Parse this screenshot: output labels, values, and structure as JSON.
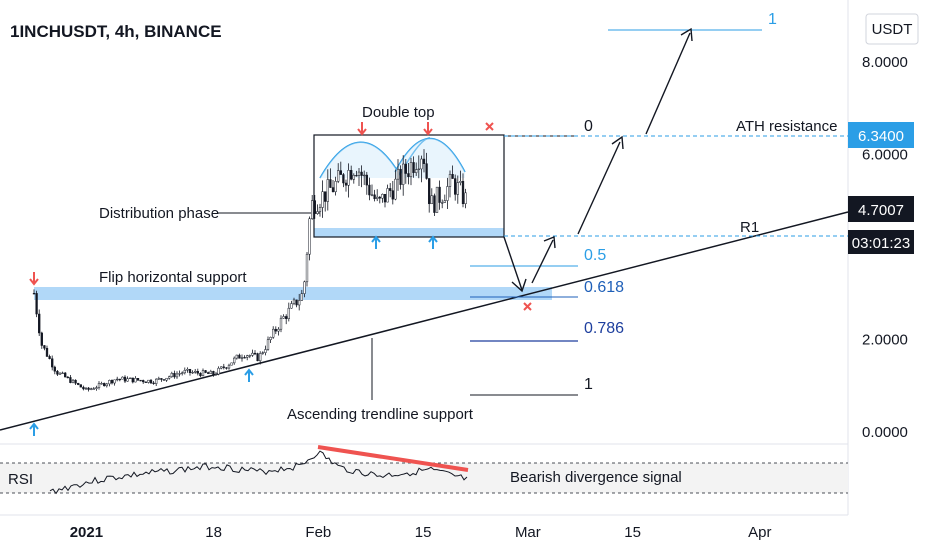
{
  "header": {
    "symbol": "1INCHUSDT, 4h, BINANCE",
    "currency_button": "USDT"
  },
  "chart_data": {
    "type": "candlestick",
    "title": "1INCHUSDT, 4h, BINANCE",
    "x_tick_labels": [
      "2021",
      "18",
      "Feb",
      "15",
      "Mar",
      "15",
      "Apr"
    ],
    "y_tick_labels": [
      "0.0000",
      "2.0000",
      "6.0000",
      "8.0000"
    ],
    "ylim": [
      -0.3,
      9.5
    ],
    "price_series_approx": [
      [
        "2020-12-25",
        3.0
      ],
      [
        "2020-12-26",
        1.9
      ],
      [
        "2020-12-28",
        1.3
      ],
      [
        "2021-01-01",
        0.9
      ],
      [
        "2021-01-05",
        1.15
      ],
      [
        "2021-01-10",
        1.1
      ],
      [
        "2021-01-14",
        1.3
      ],
      [
        "2021-01-18",
        1.25
      ],
      [
        "2021-01-22",
        1.7
      ],
      [
        "2021-01-24",
        1.6
      ],
      [
        "2021-01-27",
        2.4
      ],
      [
        "2021-01-30",
        3.0
      ],
      [
        "2021-01-31",
        4.9
      ],
      [
        "2021-02-03",
        5.3
      ],
      [
        "2021-02-06",
        5.8
      ],
      [
        "2021-02-09",
        4.9
      ],
      [
        "2021-02-12",
        5.5
      ],
      [
        "2021-02-15",
        6.1
      ],
      [
        "2021-02-16",
        4.9
      ],
      [
        "2021-02-19",
        5.4
      ],
      [
        "2021-02-21",
        4.95
      ]
    ],
    "current_price": "4.7007",
    "countdown": "03:01:23",
    "ath_price": "6.3400",
    "fib_levels": [
      {
        "label": "1",
        "color": "#2b9ee6"
      },
      {
        "label": "0",
        "color": "#131722"
      },
      {
        "label": "0.5",
        "color": "#2b9ee6"
      },
      {
        "label": "0.618",
        "color": "#1e5fb8"
      },
      {
        "label": "0.786",
        "color": "#1e3f9e"
      },
      {
        "label": "1",
        "color": "#131722"
      }
    ],
    "annotations": {
      "double_top": "Double top",
      "distribution": "Distribution phase",
      "flip_support": "Flip horizontal support",
      "ath_resistance": "ATH resistance",
      "r1": "R1",
      "trendline": "Ascending trendline support",
      "rsi": "RSI",
      "divergence": "Bearish divergence signal"
    },
    "colors": {
      "up": "#26a69a",
      "down": "#ef5350",
      "candle": "#131722",
      "accent_blue": "#2b9ee6",
      "arrow_red": "#ef5350",
      "divergence_line": "#ef5350",
      "zone": "#90c8f5"
    }
  }
}
